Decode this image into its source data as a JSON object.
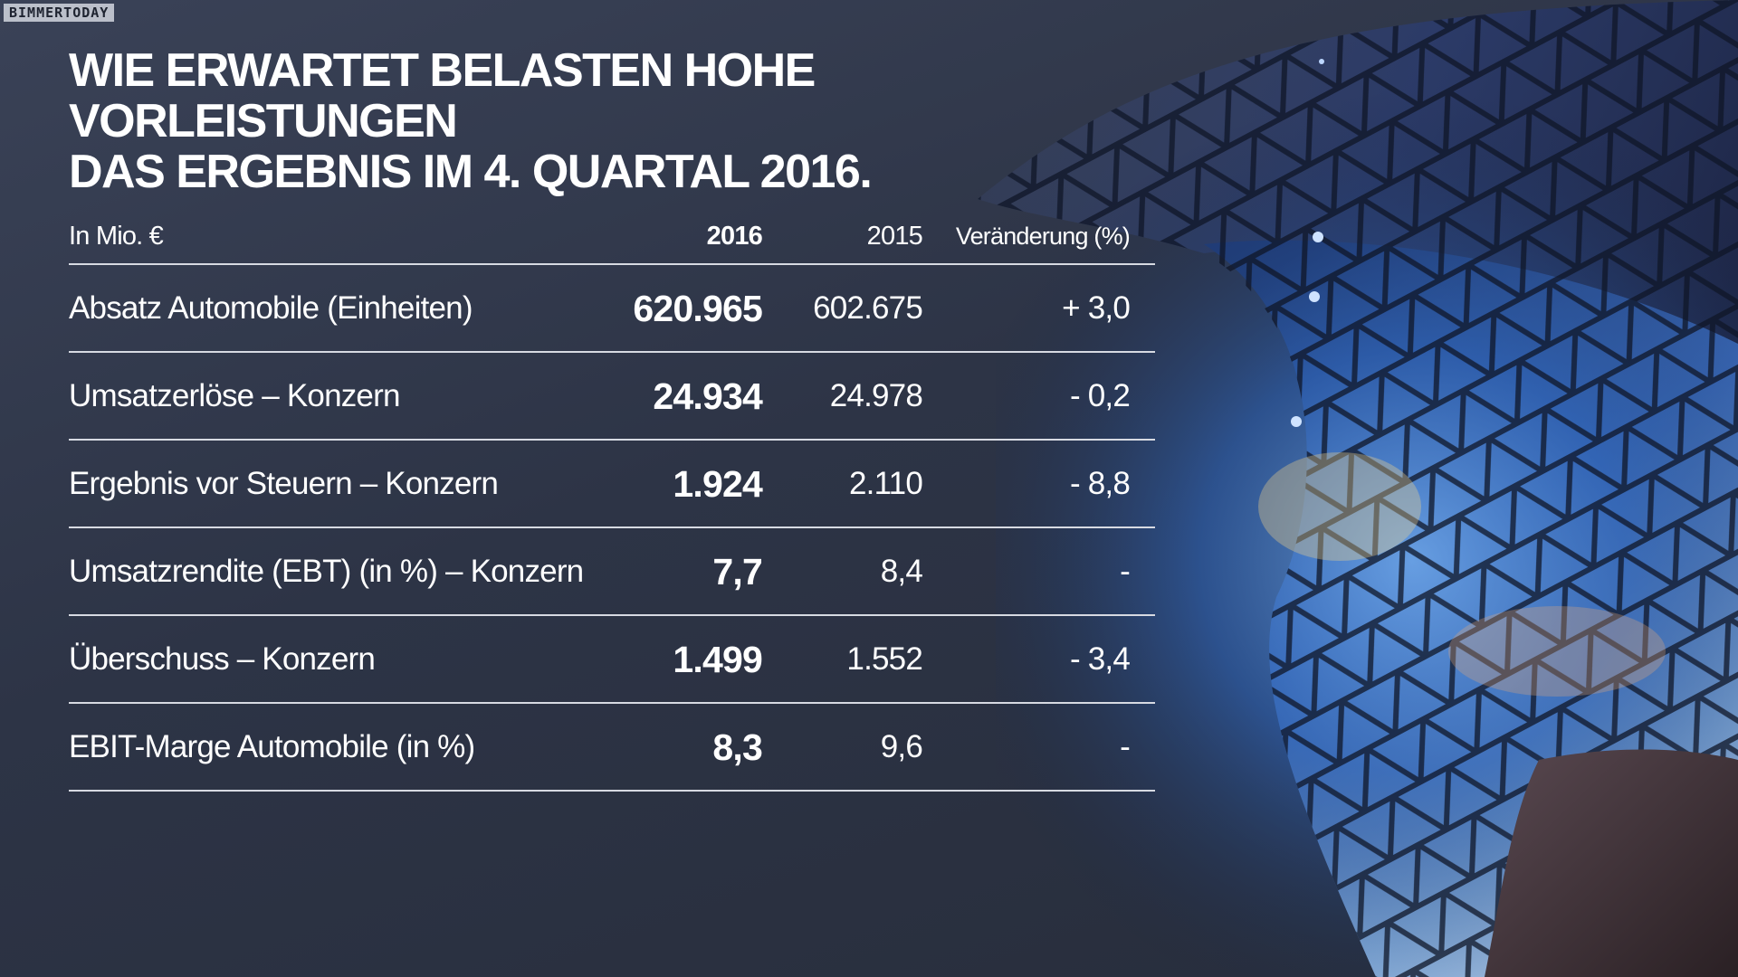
{
  "watermark": "BIMMERTODAY",
  "title": {
    "line1": "WIE ERWARTET BELASTEN HOHE VORLEISTUNGEN",
    "line2": "DAS ERGEBNIS IM 4. QUARTAL 2016."
  },
  "table": {
    "headers": {
      "label": "In Mio. €",
      "year_current": "2016",
      "year_previous": "2015",
      "change": "Veränderung (%)"
    },
    "rows": [
      {
        "label": "Absatz Automobile (Einheiten)",
        "y2016": "620.965",
        "y2015": "602.675",
        "change": "+ 3,0"
      },
      {
        "label": "Umsatzerlöse – Konzern",
        "y2016": "24.934",
        "y2015": "24.978",
        "change": "- 0,2"
      },
      {
        "label": "Ergebnis vor Steuern – Konzern",
        "y2016": "1.924",
        "y2015": "2.110",
        "change": "- 8,8"
      },
      {
        "label": "Umsatzrendite (EBT) (in %) – Konzern",
        "y2016": "7,7",
        "y2015": "8,4",
        "change": "-"
      },
      {
        "label": "Überschuss – Konzern",
        "y2016": "1.499",
        "y2015": "1.552",
        "change": "- 3,4"
      },
      {
        "label": "EBIT-Marge Automobile (in %)",
        "y2016": "8,3",
        "y2015": "9,6",
        "change": "-"
      }
    ]
  },
  "colors": {
    "background": "#2b3242",
    "text": "#ffffff",
    "divider": "#d7dae2",
    "accent_blue": "#2f7bff"
  }
}
